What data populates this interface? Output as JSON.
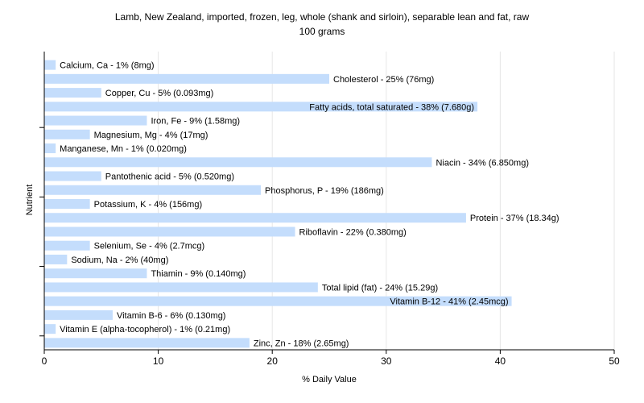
{
  "chart_data": {
    "type": "bar",
    "orientation": "horizontal",
    "title": "Lamb, New Zealand, imported, frozen, leg, whole (shank and sirloin), separable lean and fat, raw",
    "subtitle": "100 grams",
    "xlabel": "% Daily Value",
    "ylabel": "Nutrient",
    "xlim": [
      0,
      50
    ],
    "xticks": [
      0,
      10,
      20,
      30,
      40,
      50
    ],
    "grid": true,
    "bar_color": "#c4ddfc",
    "categories": [
      "Calcium, Ca",
      "Cholesterol",
      "Copper, Cu",
      "Fatty acids, total saturated",
      "Iron, Fe",
      "Magnesium, Mg",
      "Manganese, Mn",
      "Niacin",
      "Pantothenic acid",
      "Phosphorus, P",
      "Potassium, K",
      "Protein",
      "Riboflavin",
      "Selenium, Se",
      "Sodium, Na",
      "Thiamin",
      "Total lipid (fat)",
      "Vitamin B-12",
      "Vitamin B-6",
      "Vitamin E (alpha-tocopherol)",
      "Zinc, Zn"
    ],
    "values": [
      1,
      25,
      5,
      38,
      9,
      4,
      1,
      34,
      5,
      19,
      4,
      37,
      22,
      4,
      2,
      9,
      24,
      41,
      6,
      1,
      18
    ],
    "labels": [
      "Calcium, Ca - 1% (8mg)",
      "Cholesterol - 25% (76mg)",
      "Copper, Cu - 5% (0.093mg)",
      "Fatty acids, total saturated - 38% (7.680g)",
      "Iron, Fe - 9% (1.58mg)",
      "Magnesium, Mg - 4% (17mg)",
      "Manganese, Mn - 1% (0.020mg)",
      "Niacin - 34% (6.850mg)",
      "Pantothenic acid - 5% (0.520mg)",
      "Phosphorus, P - 19% (186mg)",
      "Potassium, K - 4% (156mg)",
      "Protein - 37% (18.34g)",
      "Riboflavin - 22% (0.380mg)",
      "Selenium, Se - 4% (2.7mcg)",
      "Sodium, Na - 2% (40mg)",
      "Thiamin - 9% (0.140mg)",
      "Total lipid (fat) - 24% (15.29g)",
      "Vitamin B-12 - 41% (2.45mcg)",
      "Vitamin B-6 - 6% (0.130mg)",
      "Vitamin E (alpha-tocopherol) - 1% (0.21mg)",
      "Zinc, Zn - 18% (2.65mg)"
    ],
    "inside_label_indices": [
      3,
      17
    ]
  }
}
